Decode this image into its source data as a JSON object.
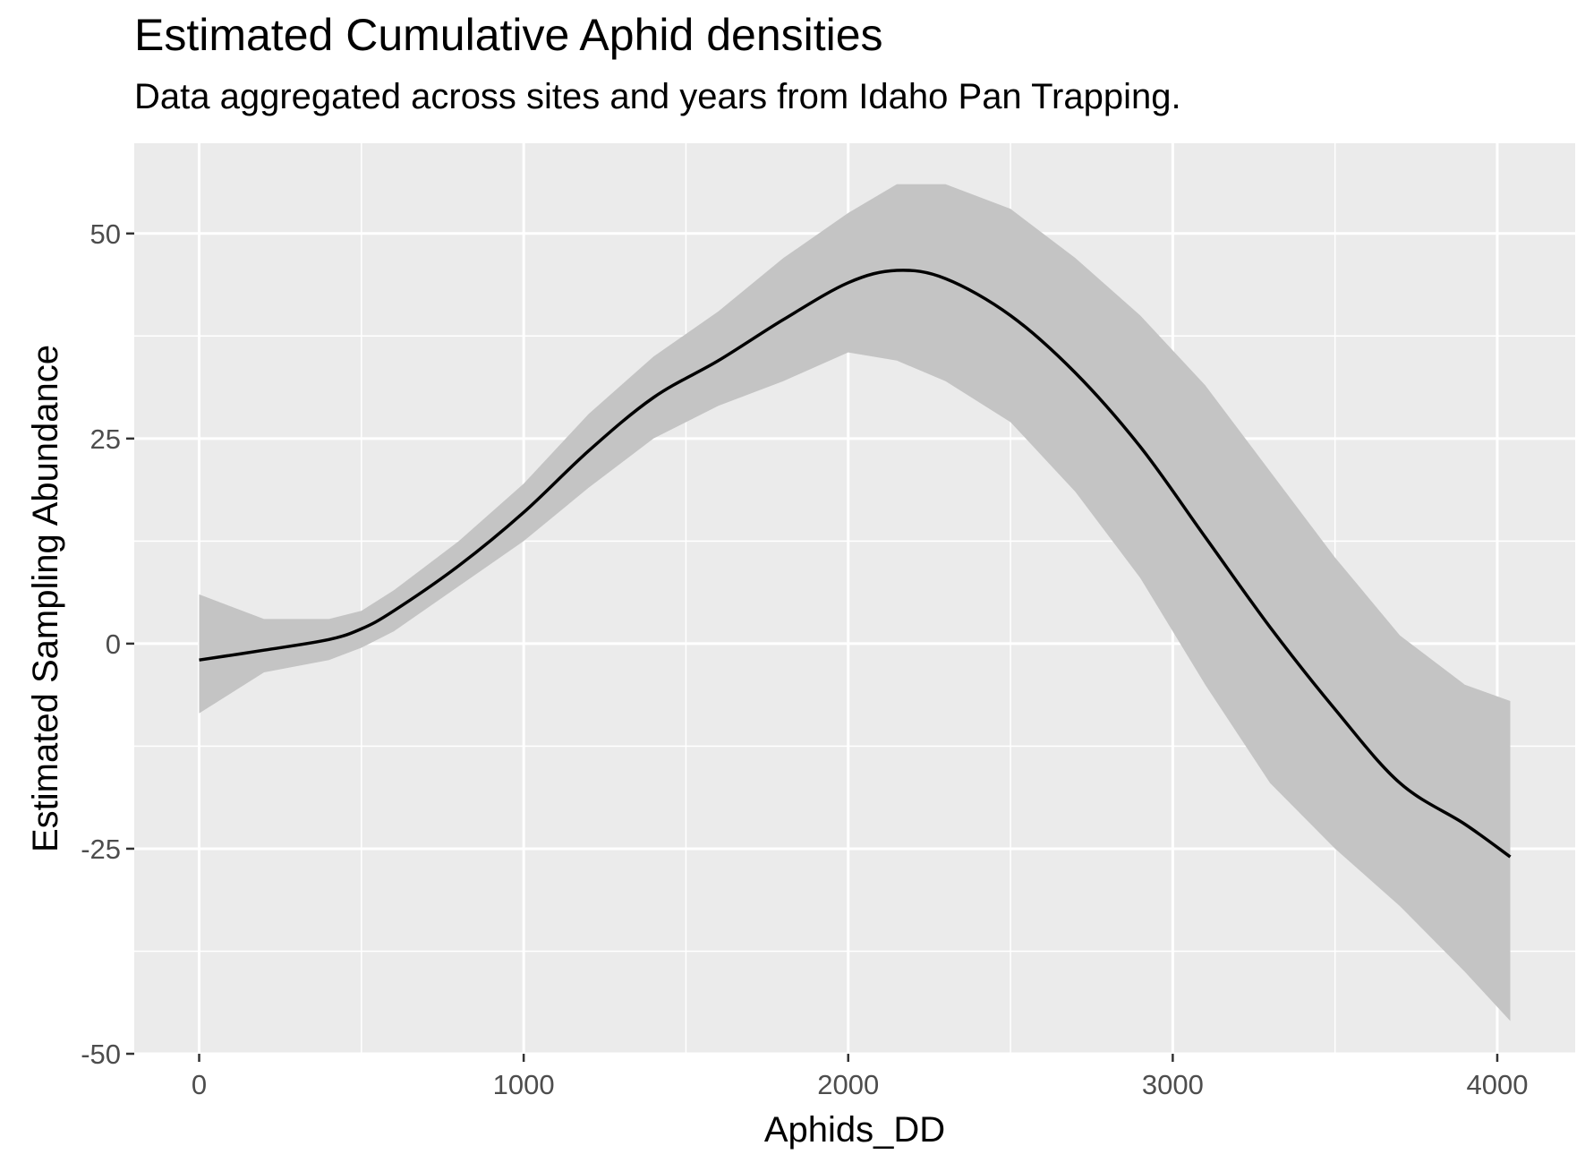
{
  "chart_data": {
    "type": "line",
    "title": "Estimated Cumulative Aphid densities",
    "subtitle": "Data aggregated across sites and years from Idaho Pan Trapping.",
    "xlabel": "Aphids_DD",
    "ylabel": "Estimated Sampling Abundance",
    "xlim": [
      -200,
      4240
    ],
    "ylim": [
      -50,
      61
    ],
    "x_ticks": [
      0,
      1000,
      2000,
      3000,
      4000
    ],
    "x_tick_labels": [
      "0",
      "1000",
      "2000",
      "3000",
      "4000"
    ],
    "y_ticks": [
      -50,
      -25,
      0,
      25,
      50
    ],
    "y_tick_labels": [
      "-50",
      "-25",
      "0",
      "25",
      "50"
    ],
    "grid": true,
    "legend": "none",
    "colors": {
      "panel": "#ebebeb",
      "grid": "#ffffff",
      "line": "#000000",
      "ribbon": "#c4c4c4"
    },
    "series": [
      {
        "x": [
          0,
          200,
          400,
          500,
          600,
          800,
          1000,
          1200,
          1400,
          1600,
          1800,
          2000,
          2150,
          2300,
          2500,
          2700,
          2900,
          3100,
          3300,
          3500,
          3700,
          3900,
          4040
        ],
        "y": [
          -2,
          -0.8,
          0.5,
          1.8,
          4,
          9.5,
          16,
          23.5,
          30,
          34.5,
          39.5,
          44,
          45.5,
          44.5,
          40,
          33,
          24,
          13,
          2,
          -8,
          -17,
          -22,
          -26
        ],
        "lower": [
          -8.5,
          -3.5,
          -2,
          -0.5,
          1.5,
          7,
          12.5,
          19,
          25,
          29,
          32,
          35.5,
          34.5,
          32,
          27,
          18.5,
          8,
          -5,
          -17,
          -25,
          -32,
          -40,
          -46
        ],
        "upper": [
          6,
          3,
          3,
          4,
          6.5,
          12.5,
          19.5,
          28,
          35,
          40.5,
          47,
          52.5,
          56,
          56,
          53,
          47,
          40,
          31.5,
          21,
          10.5,
          1,
          -5,
          -7
        ]
      }
    ]
  }
}
